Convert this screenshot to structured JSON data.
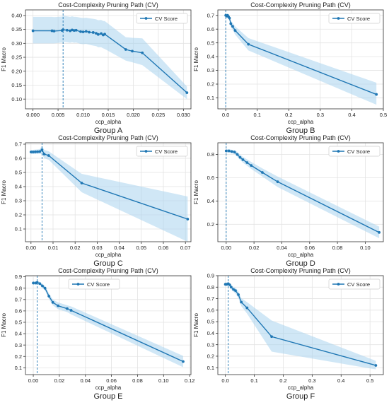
{
  "chart_data": [
    {
      "type": "line",
      "group": "Group A",
      "title": "Cost-Complexity Pruning Path (CV)",
      "xlabel": "ccp_alpha",
      "ylabel": "F1 Macro",
      "legend": "CV Score",
      "legend_position": "top-right",
      "xlim": [
        -0.0015,
        0.0315
      ],
      "ylim": [
        0.065,
        0.42
      ],
      "xticks": [
        0.0,
        0.005,
        0.01,
        0.015,
        0.02,
        0.025,
        0.03
      ],
      "xtick_labels": [
        "0.000",
        "0.005",
        "0.010",
        "0.015",
        "0.020",
        "0.025",
        "0.030"
      ],
      "yticks": [
        0.1,
        0.15,
        0.2,
        0.25,
        0.3,
        0.35,
        0.4
      ],
      "ytick_labels": [
        "0.10",
        "0.15",
        "0.20",
        "0.25",
        "0.30",
        "0.35",
        "0.40"
      ],
      "best_alpha": 0.006,
      "x": [
        0.0,
        0.0038,
        0.0042,
        0.0058,
        0.006,
        0.0068,
        0.0074,
        0.0078,
        0.0082,
        0.0086,
        0.0095,
        0.01,
        0.0106,
        0.0112,
        0.012,
        0.0126,
        0.013,
        0.0136,
        0.014,
        0.0143,
        0.0185,
        0.0198,
        0.0218,
        0.0307
      ],
      "y": [
        0.345,
        0.345,
        0.344,
        0.346,
        0.349,
        0.347,
        0.345,
        0.348,
        0.346,
        0.347,
        0.342,
        0.341,
        0.343,
        0.34,
        0.339,
        0.336,
        0.332,
        0.335,
        0.33,
        0.333,
        0.278,
        0.272,
        0.266,
        0.123
      ],
      "upper": [
        0.395,
        0.395,
        0.394,
        0.396,
        0.399,
        0.397,
        0.395,
        0.397,
        0.395,
        0.395,
        0.392,
        0.391,
        0.392,
        0.39,
        0.388,
        0.386,
        0.383,
        0.384,
        0.38,
        0.38,
        0.322,
        0.32,
        0.318,
        0.145
      ],
      "lower": [
        0.3,
        0.3,
        0.3,
        0.303,
        0.306,
        0.304,
        0.302,
        0.304,
        0.302,
        0.303,
        0.298,
        0.297,
        0.298,
        0.295,
        0.292,
        0.29,
        0.286,
        0.286,
        0.282,
        0.28,
        0.238,
        0.232,
        0.222,
        0.1
      ]
    },
    {
      "type": "line",
      "group": "Group B",
      "title": "Cost-Complexity Pruning Path (CV)",
      "xlabel": "ccp_alpha",
      "ylabel": "F1 Macro",
      "legend": "CV Score",
      "legend_position": "top-right",
      "xlim": [
        -0.025,
        0.5
      ],
      "ylim": [
        0.02,
        0.74
      ],
      "xticks": [
        0.0,
        0.1,
        0.2,
        0.3,
        0.4,
        0.5
      ],
      "xtick_labels": [
        "0.0",
        "0.1",
        "0.2",
        "0.3",
        "0.4",
        "0.5"
      ],
      "yticks": [
        0.1,
        0.2,
        0.3,
        0.4,
        0.5,
        0.6,
        0.7
      ],
      "ytick_labels": [
        "0.1",
        "0.2",
        "0.3",
        "0.4",
        "0.5",
        "0.6",
        "0.7"
      ],
      "best_alpha": 0.0,
      "x": [
        0.0,
        0.003,
        0.006,
        0.009,
        0.012,
        0.016,
        0.022,
        0.03,
        0.072,
        0.478
      ],
      "y": [
        0.7,
        0.695,
        0.7,
        0.69,
        0.68,
        0.64,
        0.62,
        0.59,
        0.49,
        0.125
      ],
      "upper": [
        0.715,
        0.71,
        0.715,
        0.705,
        0.697,
        0.662,
        0.645,
        0.62,
        0.535,
        0.21
      ],
      "lower": [
        0.685,
        0.68,
        0.685,
        0.675,
        0.663,
        0.618,
        0.595,
        0.56,
        0.445,
        0.05
      ]
    },
    {
      "type": "line",
      "group": "Group C",
      "title": "Cost-Complexity Pruning Path (CV)",
      "xlabel": "ccp_alpha",
      "ylabel": "F1 Macro",
      "legend": "CV Score",
      "legend_position": "top-right",
      "xlim": [
        -0.0025,
        0.0725
      ],
      "ylim": [
        0.01,
        0.71
      ],
      "xticks": [
        0.0,
        0.01,
        0.02,
        0.03,
        0.04,
        0.05,
        0.06,
        0.07
      ],
      "xtick_labels": [
        "0.00",
        "0.01",
        "0.02",
        "0.03",
        "0.04",
        "0.05",
        "0.06",
        "0.07"
      ],
      "yticks": [
        0.1,
        0.2,
        0.3,
        0.4,
        0.5,
        0.6,
        0.7
      ],
      "ytick_labels": [
        "0.1",
        "0.2",
        "0.3",
        "0.4",
        "0.5",
        "0.6",
        "0.7"
      ],
      "best_alpha": 0.005,
      "x": [
        0.0,
        0.001,
        0.002,
        0.003,
        0.004,
        0.005,
        0.006,
        0.008,
        0.023,
        0.071
      ],
      "y": [
        0.645,
        0.645,
        0.646,
        0.647,
        0.648,
        0.66,
        0.63,
        0.62,
        0.425,
        0.17
      ],
      "upper": [
        0.66,
        0.66,
        0.662,
        0.663,
        0.665,
        0.69,
        0.66,
        0.65,
        0.49,
        0.33
      ],
      "lower": [
        0.63,
        0.63,
        0.63,
        0.631,
        0.631,
        0.63,
        0.6,
        0.59,
        0.36,
        0.01
      ]
    },
    {
      "type": "line",
      "group": "Group D",
      "title": "Cost-Complexity Pruning Path (CV)",
      "xlabel": "ccp_alpha",
      "ylabel": "F1 Macro",
      "legend": "CV Score",
      "legend_position": "top-right",
      "xlim": [
        -0.006,
        0.113
      ],
      "ylim": [
        0.05,
        0.9
      ],
      "xticks": [
        0.0,
        0.02,
        0.04,
        0.06,
        0.08,
        0.1
      ],
      "xtick_labels": [
        "0.00",
        "0.02",
        "0.04",
        "0.06",
        "0.08",
        "0.10"
      ],
      "yticks": [
        0.2,
        0.4,
        0.6,
        0.8
      ],
      "ytick_labels": [
        "0.2",
        "0.4",
        "0.6",
        "0.8"
      ],
      "best_alpha": 0.0,
      "x": [
        0.0,
        0.002,
        0.004,
        0.006,
        0.008,
        0.01,
        0.012,
        0.015,
        0.018,
        0.026,
        0.037,
        0.11
      ],
      "y": [
        0.83,
        0.83,
        0.825,
        0.82,
        0.8,
        0.775,
        0.755,
        0.73,
        0.705,
        0.645,
        0.565,
        0.13
      ],
      "upper": [
        0.845,
        0.845,
        0.84,
        0.837,
        0.82,
        0.797,
        0.78,
        0.757,
        0.735,
        0.68,
        0.61,
        0.18
      ],
      "lower": [
        0.815,
        0.815,
        0.81,
        0.803,
        0.78,
        0.753,
        0.73,
        0.703,
        0.675,
        0.61,
        0.52,
        0.08
      ]
    },
    {
      "type": "line",
      "group": "Group E",
      "title": "Cost-Complexity Pruning Path (CV)",
      "xlabel": "ccp_alpha",
      "ylabel": "F1 Macro",
      "legend": "CV Score",
      "legend_position": "top-center",
      "xlim": [
        -0.006,
        0.121
      ],
      "ylim": [
        0.04,
        0.91
      ],
      "xticks": [
        0.0,
        0.02,
        0.04,
        0.06,
        0.08,
        0.1,
        0.12
      ],
      "xtick_labels": [
        "0.00",
        "0.02",
        "0.04",
        "0.06",
        "0.08",
        "0.10",
        "0.12"
      ],
      "yticks": [
        0.1,
        0.2,
        0.3,
        0.4,
        0.5,
        0.6,
        0.7,
        0.8,
        0.9
      ],
      "ytick_labels": [
        "0.1",
        "0.2",
        "0.3",
        "0.4",
        "0.5",
        "0.6",
        "0.7",
        "0.8",
        "0.9"
      ],
      "best_alpha": 0.003,
      "x": [
        0.0,
        0.002,
        0.003,
        0.005,
        0.007,
        0.009,
        0.012,
        0.015,
        0.019,
        0.026,
        0.029,
        0.115
      ],
      "y": [
        0.845,
        0.845,
        0.85,
        0.84,
        0.82,
        0.8,
        0.73,
        0.675,
        0.645,
        0.62,
        0.605,
        0.155
      ],
      "upper": [
        0.86,
        0.86,
        0.865,
        0.855,
        0.84,
        0.82,
        0.755,
        0.7,
        0.675,
        0.65,
        0.64,
        0.205
      ],
      "lower": [
        0.83,
        0.83,
        0.835,
        0.825,
        0.8,
        0.78,
        0.705,
        0.65,
        0.615,
        0.59,
        0.57,
        0.105
      ]
    },
    {
      "type": "line",
      "group": "Group F",
      "title": "Cost-Complexity Pruning Path (CV)",
      "xlabel": "ccp_alpha",
      "ylabel": "F1 Macro",
      "legend": "CV Score",
      "legend_position": "top-right",
      "xlim": [
        -0.026,
        0.546
      ],
      "ylim": [
        0.04,
        0.9
      ],
      "xticks": [
        0.0,
        0.1,
        0.2,
        0.3,
        0.4,
        0.5
      ],
      "xtick_labels": [
        "0.0",
        "0.1",
        "0.2",
        "0.3",
        "0.4",
        "0.5"
      ],
      "yticks": [
        0.1,
        0.2,
        0.3,
        0.4,
        0.5,
        0.6,
        0.7,
        0.8,
        0.9
      ],
      "ytick_labels": [
        "0.1",
        "0.2",
        "0.3",
        "0.4",
        "0.5",
        "0.6",
        "0.7",
        "0.8",
        "0.9"
      ],
      "best_alpha": 0.01,
      "x": [
        0.0,
        0.005,
        0.01,
        0.015,
        0.02,
        0.028,
        0.035,
        0.045,
        0.055,
        0.075,
        0.16,
        0.52
      ],
      "y": [
        0.825,
        0.825,
        0.83,
        0.82,
        0.8,
        0.78,
        0.77,
        0.735,
        0.67,
        0.62,
        0.37,
        0.12
      ],
      "upper": [
        0.84,
        0.84,
        0.845,
        0.837,
        0.82,
        0.8,
        0.795,
        0.765,
        0.705,
        0.67,
        0.51,
        0.16
      ],
      "lower": [
        0.81,
        0.81,
        0.815,
        0.803,
        0.78,
        0.76,
        0.745,
        0.705,
        0.635,
        0.57,
        0.24,
        0.085
      ]
    }
  ]
}
